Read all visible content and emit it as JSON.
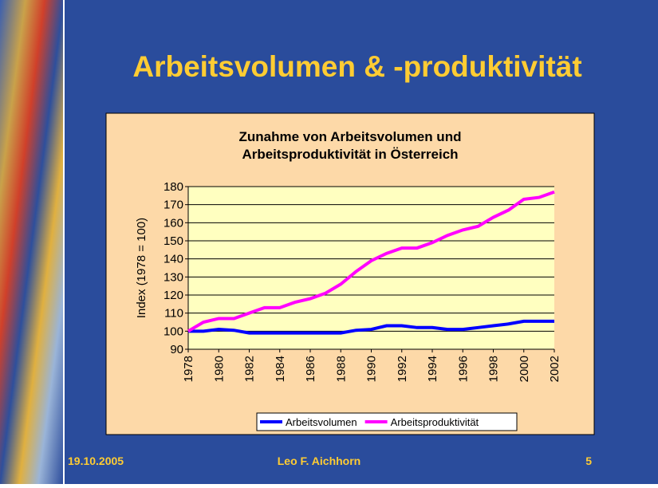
{
  "slide": {
    "title": "Arbeitsvolumen & -produktivität",
    "footer": {
      "date": "19.10.2005",
      "author": "Leo F. Aichhorn",
      "page": "5"
    }
  },
  "chart_data": {
    "type": "line",
    "title": "Zunahme von Arbeitsvolumen und Arbeitsproduktivität in Österreich",
    "y_label": "Index (1978 = 100)",
    "x": [
      1978,
      1979,
      1980,
      1981,
      1982,
      1983,
      1984,
      1985,
      1986,
      1987,
      1988,
      1989,
      1990,
      1991,
      1992,
      1993,
      1994,
      1995,
      1996,
      1997,
      1998,
      1999,
      2000,
      2001,
      2002
    ],
    "xlim": [
      1978,
      2002
    ],
    "xticks": [
      1978,
      1980,
      1982,
      1984,
      1986,
      1988,
      1990,
      1992,
      1994,
      1996,
      1998,
      2000,
      2002
    ],
    "ylim": [
      90,
      180
    ],
    "yticks": [
      90,
      100,
      110,
      120,
      130,
      140,
      150,
      160,
      170,
      180
    ],
    "grid": true,
    "series": [
      {
        "name": "Arbeitsvolumen",
        "color": "#0000ff",
        "values": [
          100,
          100,
          101,
          100.5,
          99,
          99,
          99,
          99,
          99,
          99,
          99,
          100.5,
          101,
          103,
          103,
          102,
          102,
          101,
          101,
          102,
          103,
          104,
          105.5,
          105.5,
          105.5
        ]
      },
      {
        "name": "Arbeitsproduktivität",
        "color": "#ff00ff",
        "values": [
          100,
          105,
          107,
          107,
          110,
          113,
          113,
          116,
          118,
          121,
          126,
          133,
          139,
          143,
          146,
          146,
          149,
          153,
          156,
          158,
          163,
          167,
          173,
          174,
          177
        ]
      }
    ]
  }
}
